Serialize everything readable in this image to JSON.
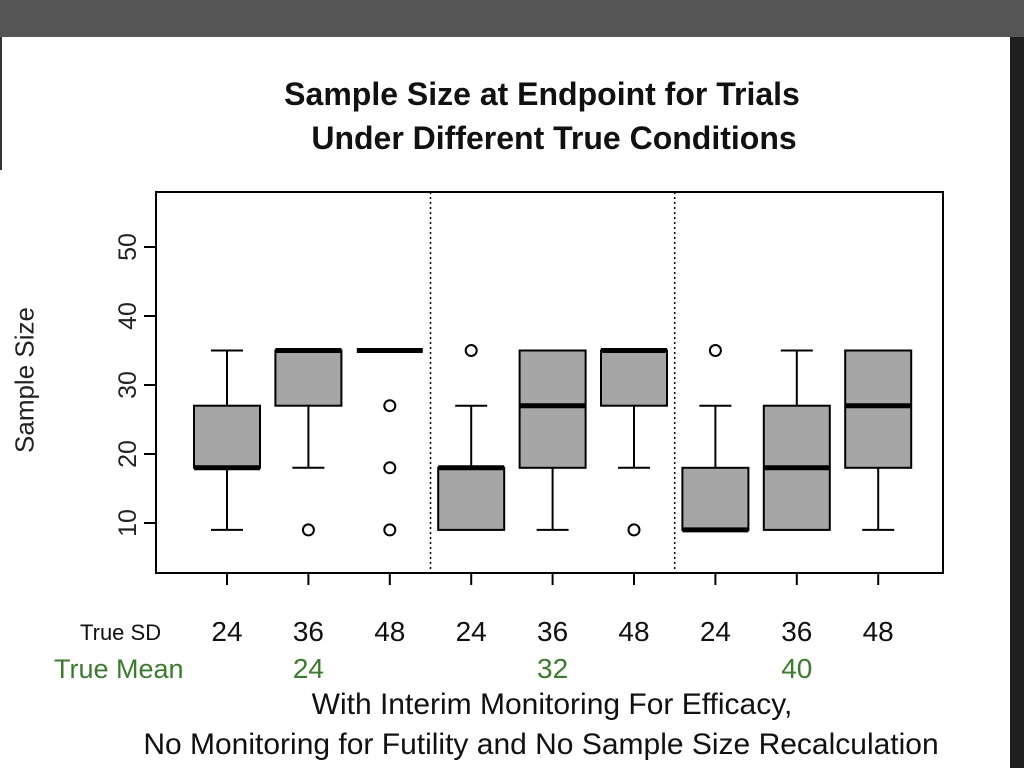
{
  "chart_data": {
    "type": "box",
    "title": [
      "Sample Size at Endpoint for Trials",
      "Under Different True Conditions"
    ],
    "ylabel": "Sample Size",
    "ylim": [
      3,
      58
    ],
    "yticks": [
      10,
      20,
      30,
      40,
      50
    ],
    "row_labels": {
      "sd": "True SD",
      "mean": "True Mean"
    },
    "sd_values": [
      "24",
      "36",
      "48",
      "24",
      "36",
      "48",
      "24",
      "36",
      "48"
    ],
    "mean_values": [
      "24",
      "32",
      "40"
    ],
    "caption": [
      "With Interim Monitoring For Efficacy,",
      "No Monitoring for Futility and No Sample Size Recalculation"
    ],
    "colors": {
      "box_fill": "#a6a6a6",
      "mean_label": "#3a7d2a",
      "axis": "#000000"
    },
    "boxes": [
      {
        "true_mean": 24,
        "true_sd": 24,
        "min": 9,
        "q1": 18,
        "median": 18,
        "q3": 27,
        "max": 35,
        "outliers": []
      },
      {
        "true_mean": 24,
        "true_sd": 36,
        "min": 18,
        "q1": 27,
        "median": 35,
        "q3": 35,
        "max": 35,
        "outliers": [
          9
        ]
      },
      {
        "true_mean": 24,
        "true_sd": 48,
        "min": 35,
        "q1": 35,
        "median": 35,
        "q3": 35,
        "max": 35,
        "outliers": [
          27,
          18,
          9
        ]
      },
      {
        "true_mean": 32,
        "true_sd": 24,
        "min": 9,
        "q1": 9,
        "median": 18,
        "q3": 18,
        "max": 27,
        "outliers": [
          35
        ]
      },
      {
        "true_mean": 32,
        "true_sd": 36,
        "min": 9,
        "q1": 18,
        "median": 27,
        "q3": 35,
        "max": 35,
        "outliers": []
      },
      {
        "true_mean": 32,
        "true_sd": 48,
        "min": 18,
        "q1": 27,
        "median": 35,
        "q3": 35,
        "max": 35,
        "outliers": [
          9
        ]
      },
      {
        "true_mean": 40,
        "true_sd": 24,
        "min": 9,
        "q1": 9,
        "median": 9,
        "q3": 18,
        "max": 27,
        "outliers": [
          35
        ]
      },
      {
        "true_mean": 40,
        "true_sd": 36,
        "min": 9,
        "q1": 9,
        "median": 18,
        "q3": 27,
        "max": 35,
        "outliers": []
      },
      {
        "true_mean": 40,
        "true_sd": 48,
        "min": 9,
        "q1": 18,
        "median": 27,
        "q3": 35,
        "max": 35,
        "outliers": []
      }
    ],
    "group_separators_after": [
      3,
      6
    ]
  }
}
